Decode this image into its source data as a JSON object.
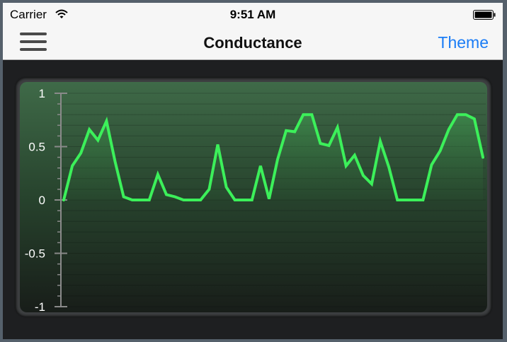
{
  "status_bar": {
    "carrier": "Carrier",
    "time": "9:51 AM",
    "wifi_icon": "wifi-icon",
    "battery_icon": "battery-icon"
  },
  "nav": {
    "menu_icon": "hamburger-menu-icon",
    "title": "Conductance",
    "theme_label": "Theme",
    "accent_color": "#1a7cf5"
  },
  "chart_data": {
    "type": "area",
    "title": "",
    "xlabel": "",
    "ylabel": "",
    "ylim": [
      -1,
      1
    ],
    "yticks": [
      "1",
      "0.5",
      "0",
      "-0.5",
      "-1"
    ],
    "grid": true,
    "line_color": "#3cf05a",
    "series": [
      {
        "values": [
          0,
          0.32,
          0.44,
          0.66,
          0.56,
          0.74,
          0.36,
          0.03,
          0,
          0,
          0,
          0.24,
          0.05,
          0.03,
          0,
          0,
          0,
          0.1,
          0.52,
          0.12,
          0,
          0,
          0,
          0.32,
          0.01,
          0.38,
          0.65,
          0.64,
          0.8,
          0.8,
          0.53,
          0.51,
          0.68,
          0.32,
          0.42,
          0.23,
          0.15,
          0.55,
          0.31,
          0,
          0,
          0,
          0,
          0.33,
          0.46,
          0.66,
          0.8,
          0.8,
          0.76,
          0.4
        ]
      }
    ]
  }
}
